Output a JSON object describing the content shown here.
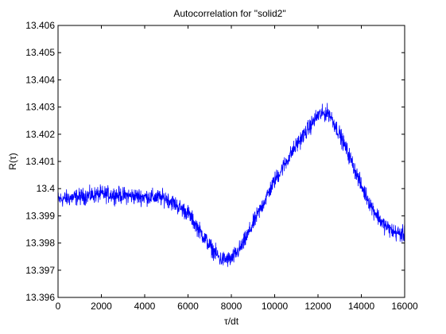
{
  "chart_data": {
    "type": "line",
    "title": "Autocorrelation for \"solid2\"",
    "xlabel": "τ/dt",
    "ylabel": "R(τ)",
    "xlim": [
      0,
      16000
    ],
    "ylim": [
      13.396,
      13.406
    ],
    "xticks": [
      0,
      2000,
      4000,
      6000,
      8000,
      10000,
      12000,
      14000,
      16000
    ],
    "yticks": [
      13.396,
      13.397,
      13.398,
      13.399,
      13.4,
      13.401,
      13.402,
      13.403,
      13.404,
      13.405,
      13.406
    ],
    "ytick_labels": [
      "13.396",
      "13.397",
      "13.398",
      "13.399",
      "13.4",
      "13.401",
      "13.402",
      "13.403",
      "13.404",
      "13.405",
      "13.406"
    ],
    "grid": false,
    "series": [
      {
        "color": "#0000ff",
        "trend_x": [
          0,
          1000,
          2000,
          3000,
          4000,
          5000,
          6000,
          6500,
          7000,
          7500,
          8000,
          8500,
          9000,
          10000,
          11000,
          12000,
          12500,
          13000,
          13500,
          14000,
          14500,
          15000,
          15500,
          16000
        ],
        "trend_y": [
          13.3996,
          13.3997,
          13.3998,
          13.39975,
          13.3997,
          13.39965,
          13.3991,
          13.3985,
          13.3979,
          13.3974,
          13.3974,
          13.3979,
          13.3987,
          13.4003,
          13.4016,
          13.4027,
          13.4028,
          13.402,
          13.4011,
          13.4001,
          13.3993,
          13.3987,
          13.3984,
          13.3983
        ],
        "noise_amplitude": 0.00045,
        "samples": 1600
      }
    ]
  }
}
